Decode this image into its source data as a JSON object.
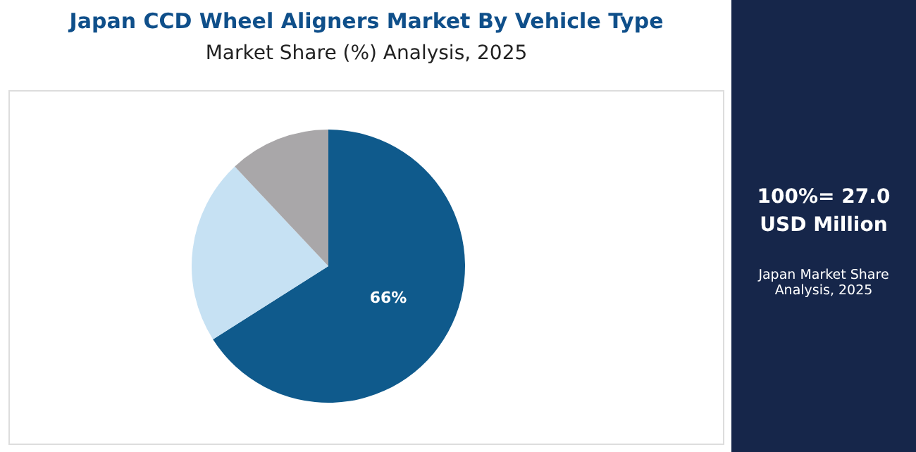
{
  "chart_data": {
    "type": "pie",
    "title": "Japan CCD Wheel Aligners Market By Vehicle Type",
    "subtitle": "Market Share (%) Analysis, 2025",
    "categories": [
      null,
      null,
      null
    ],
    "values": [
      66,
      22,
      12
    ],
    "colors": [
      "#0f5a8c",
      "#c6e1f3",
      "#a9a7a9"
    ],
    "value_labels": [
      "66%",
      null,
      null
    ],
    "legend": false,
    "annotations": [
      "100%= 27.0 USD Million",
      "Japan Market Share Analysis, 2025"
    ]
  }
}
